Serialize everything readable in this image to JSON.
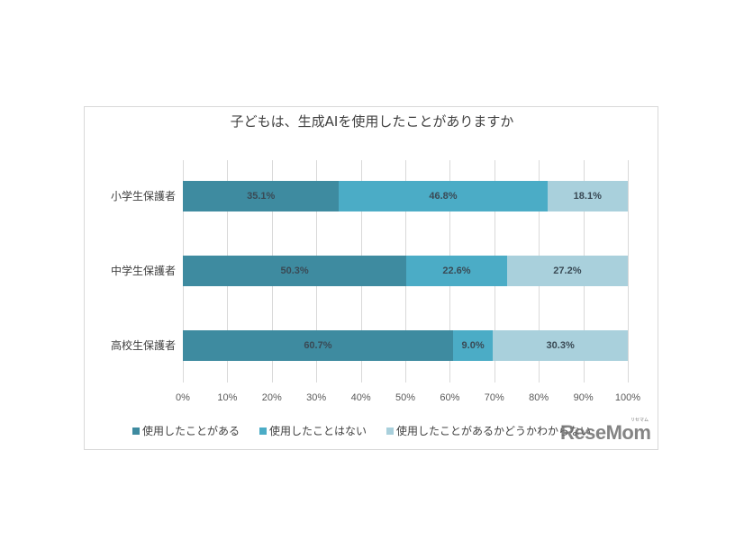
{
  "chart_data": {
    "type": "bar",
    "orientation": "horizontal",
    "stacked": true,
    "percent": true,
    "title": "子どもは、生成AIを使用したことがありますか",
    "categories": [
      "小学生保護者",
      "中学生保護者",
      "高校生保護者"
    ],
    "series": [
      {
        "name": "使用したことがある",
        "color": "#3e8ba0",
        "values": [
          35.1,
          50.3,
          60.7
        ]
      },
      {
        "name": "使用したことはない",
        "color": "#4bacc6",
        "values": [
          46.8,
          22.6,
          9.0
        ]
      },
      {
        "name": "使用したことがあるかどうかわからない",
        "color": "#a9d0dc",
        "values": [
          18.1,
          27.2,
          30.3
        ]
      }
    ],
    "data_labels": [
      [
        "35.1%",
        "46.8%",
        "18.1%"
      ],
      [
        "50.3%",
        "22.6%",
        "27.2%"
      ],
      [
        "60.7%",
        "9.0%",
        "30.3%"
      ]
    ],
    "xlabel": "",
    "ylabel": "",
    "xlim": [
      0,
      100
    ],
    "x_ticks": [
      "0%",
      "10%",
      "20%",
      "30%",
      "40%",
      "50%",
      "60%",
      "70%",
      "80%",
      "90%",
      "100%"
    ],
    "grid": true,
    "legend_position": "bottom"
  },
  "watermark": {
    "text": "ReseMom",
    "kana": "リセマム"
  }
}
